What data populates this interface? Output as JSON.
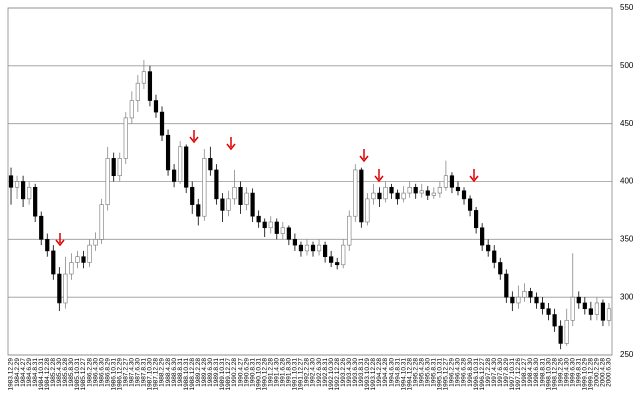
{
  "chart_data": {
    "type": "candlestick",
    "categories": [
      "1983.12.29",
      "1984.2.29",
      "1984.4.27",
      "1984.6.29",
      "1984.8.31",
      "1984.10.31",
      "1984.12.28",
      "1985.2.28",
      "1985.4.30",
      "1985.6.28",
      "1985.8.30",
      "1985.10.31",
      "1985.12.27",
      "1986.2.28",
      "1986.4.30",
      "1986.6.30",
      "1986.8.29",
      "1986.10.31",
      "1986.12.29",
      "1987.2.27",
      "1987.4.30",
      "1987.6.30",
      "1987.8.31",
      "1987.10.30",
      "1987.12.28",
      "1988.2.29",
      "1988.4.28",
      "1988.6.30",
      "1988.8.31",
      "1988.10.31",
      "1988.12.28",
      "1989.2.28",
      "1989.4.28",
      "1989.6.30",
      "1989.8.31",
      "1989.10.31",
      "1989.12.27",
      "1990.2.28",
      "1990.4.27",
      "1990.6.29",
      "1990.8.31",
      "1990.10.31",
      "1990.12.28",
      "1991.2.28",
      "1991.4.30",
      "1991.6.28",
      "1991.8.30",
      "1991.10.31",
      "1991.12.27",
      "1992.2.28",
      "1992.4.30",
      "1992.6.30",
      "1992.8.31",
      "1992.10.30",
      "1992.12.28",
      "1993.2.26",
      "1993.4.30",
      "1993.6.30",
      "1993.8.31",
      "1993.10.29",
      "1993.12.28",
      "1994.2.28",
      "1994.4.28",
      "1994.6.30",
      "1994.8.31",
      "1994.10.31",
      "1994.12.28",
      "1995.2.28",
      "1995.4.28",
      "1995.6.30",
      "1995.8.31",
      "1995.10.31",
      "1995.12.27",
      "1996.2.29",
      "1996.4.30",
      "1996.6.28",
      "1996.8.30",
      "1996.10.31",
      "1996.12.27",
      "1997.2.28",
      "1997.4.30",
      "1997.6.30",
      "1997.8.29",
      "1997.10.31",
      "1997.12.26",
      "1998.2.27",
      "1998.4.30",
      "1998.6.30",
      "1998.8.31",
      "1998.10.30",
      "1998.12.28",
      "1999.2.26",
      "1999.4.30",
      "1999.6.30",
      "1999.8.31",
      "1999.10.29",
      "1999.12.28",
      "2000.2.29",
      "2000.4.28",
      "2000.6.30"
    ],
    "candles": [
      [
        405,
        412,
        380,
        395
      ],
      [
        395,
        405,
        385,
        400
      ],
      [
        400,
        405,
        378,
        385
      ],
      [
        385,
        400,
        380,
        395
      ],
      [
        395,
        398,
        365,
        370
      ],
      [
        370,
        374,
        345,
        350
      ],
      [
        350,
        355,
        335,
        340
      ],
      [
        340,
        345,
        315,
        320
      ],
      [
        320,
        326,
        288,
        295
      ],
      [
        295,
        335,
        290,
        320
      ],
      [
        320,
        338,
        315,
        330
      ],
      [
        330,
        340,
        325,
        335
      ],
      [
        335,
        340,
        325,
        330
      ],
      [
        330,
        350,
        326,
        345
      ],
      [
        345,
        356,
        340,
        350
      ],
      [
        350,
        385,
        346,
        380
      ],
      [
        380,
        430,
        375,
        420
      ],
      [
        420,
        425,
        400,
        405
      ],
      [
        405,
        425,
        400,
        420
      ],
      [
        420,
        460,
        415,
        455
      ],
      [
        455,
        478,
        450,
        470
      ],
      [
        470,
        492,
        460,
        485
      ],
      [
        485,
        505,
        480,
        495
      ],
      [
        495,
        500,
        465,
        470
      ],
      [
        470,
        475,
        455,
        460
      ],
      [
        460,
        465,
        435,
        440
      ],
      [
        440,
        445,
        405,
        410
      ],
      [
        410,
        415,
        395,
        400
      ],
      [
        400,
        435,
        398,
        430
      ],
      [
        430,
        432,
        390,
        395
      ],
      [
        395,
        400,
        372,
        380
      ],
      [
        380,
        385,
        362,
        370
      ],
      [
        370,
        428,
        366,
        420
      ],
      [
        420,
        430,
        405,
        410
      ],
      [
        410,
        415,
        380,
        385
      ],
      [
        385,
        390,
        365,
        375
      ],
      [
        375,
        392,
        370,
        385
      ],
      [
        385,
        410,
        380,
        395
      ],
      [
        395,
        400,
        372,
        380
      ],
      [
        380,
        395,
        375,
        390
      ],
      [
        390,
        394,
        365,
        370
      ],
      [
        370,
        375,
        360,
        365
      ],
      [
        365,
        368,
        352,
        360
      ],
      [
        360,
        370,
        355,
        365
      ],
      [
        365,
        368,
        350,
        355
      ],
      [
        355,
        365,
        350,
        360
      ],
      [
        360,
        362,
        345,
        350
      ],
      [
        350,
        355,
        340,
        345
      ],
      [
        345,
        348,
        335,
        340
      ],
      [
        340,
        350,
        336,
        345
      ],
      [
        345,
        348,
        335,
        340
      ],
      [
        340,
        350,
        336,
        345
      ],
      [
        345,
        348,
        330,
        335
      ],
      [
        335,
        340,
        326,
        330
      ],
      [
        330,
        334,
        324,
        328
      ],
      [
        328,
        350,
        325,
        345
      ],
      [
        345,
        375,
        340,
        370
      ],
      [
        370,
        415,
        365,
        410
      ],
      [
        410,
        412,
        360,
        365
      ],
      [
        365,
        390,
        362,
        385
      ],
      [
        385,
        398,
        380,
        390
      ],
      [
        390,
        395,
        378,
        385
      ],
      [
        385,
        400,
        382,
        395
      ],
      [
        395,
        398,
        385,
        390
      ],
      [
        390,
        393,
        380,
        385
      ],
      [
        385,
        396,
        382,
        390
      ],
      [
        390,
        400,
        386,
        395
      ],
      [
        395,
        398,
        385,
        390
      ],
      [
        390,
        398,
        386,
        392
      ],
      [
        392,
        396,
        384,
        388
      ],
      [
        388,
        395,
        385,
        390
      ],
      [
        390,
        400,
        386,
        395
      ],
      [
        395,
        418,
        392,
        405
      ],
      [
        405,
        408,
        390,
        395
      ],
      [
        395,
        400,
        388,
        392
      ],
      [
        392,
        395,
        380,
        385
      ],
      [
        385,
        388,
        370,
        375
      ],
      [
        375,
        378,
        355,
        360
      ],
      [
        360,
        364,
        340,
        345
      ],
      [
        345,
        350,
        335,
        340
      ],
      [
        340,
        345,
        325,
        330
      ],
      [
        330,
        334,
        315,
        320
      ],
      [
        320,
        324,
        295,
        300
      ],
      [
        300,
        305,
        288,
        295
      ],
      [
        295,
        310,
        290,
        300
      ],
      [
        300,
        312,
        296,
        305
      ],
      [
        305,
        308,
        295,
        300
      ],
      [
        300,
        304,
        290,
        295
      ],
      [
        295,
        300,
        285,
        290
      ],
      [
        290,
        295,
        280,
        285
      ],
      [
        285,
        290,
        270,
        275
      ],
      [
        275,
        280,
        255,
        260
      ],
      [
        260,
        290,
        258,
        280
      ],
      [
        280,
        338,
        275,
        300
      ],
      [
        300,
        305,
        290,
        295
      ],
      [
        295,
        300,
        285,
        290
      ],
      [
        290,
        296,
        280,
        285
      ],
      [
        285,
        300,
        280,
        295
      ],
      [
        295,
        298,
        275,
        280
      ],
      [
        280,
        295,
        275,
        290
      ]
    ],
    "up_color": "#ffffff",
    "down_color": "#000000",
    "ylim": [
      250,
      550
    ],
    "yticks": [
      250,
      300,
      350,
      400,
      450,
      500,
      550
    ],
    "grid": true
  }
}
